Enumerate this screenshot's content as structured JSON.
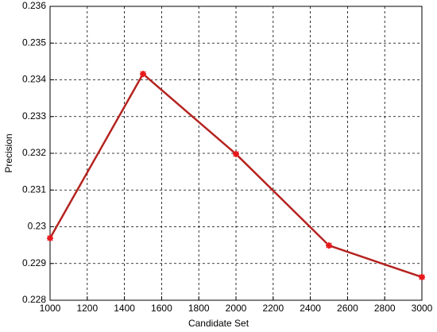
{
  "chart_data": {
    "type": "line",
    "x_label": "Candidate Set",
    "y_label": "Precision",
    "x": [
      1000,
      1500,
      2000,
      2500,
      3000
    ],
    "series": [
      {
        "values": [
          0.22969,
          0.23416,
          0.23198,
          0.22949,
          0.22863
        ],
        "color": "#b5231f",
        "marker_color": "#e8181b"
      }
    ],
    "xlim": [
      1000,
      3000
    ],
    "xticks": [
      1000,
      1200,
      1400,
      1600,
      1800,
      2000,
      2200,
      2400,
      2600,
      2800,
      3000
    ],
    "ylim": [
      0.228,
      0.236
    ],
    "yticks": [
      0.228,
      0.229,
      0.23,
      0.231,
      0.232,
      0.233,
      0.234,
      0.235,
      0.236
    ],
    "grid": true
  }
}
